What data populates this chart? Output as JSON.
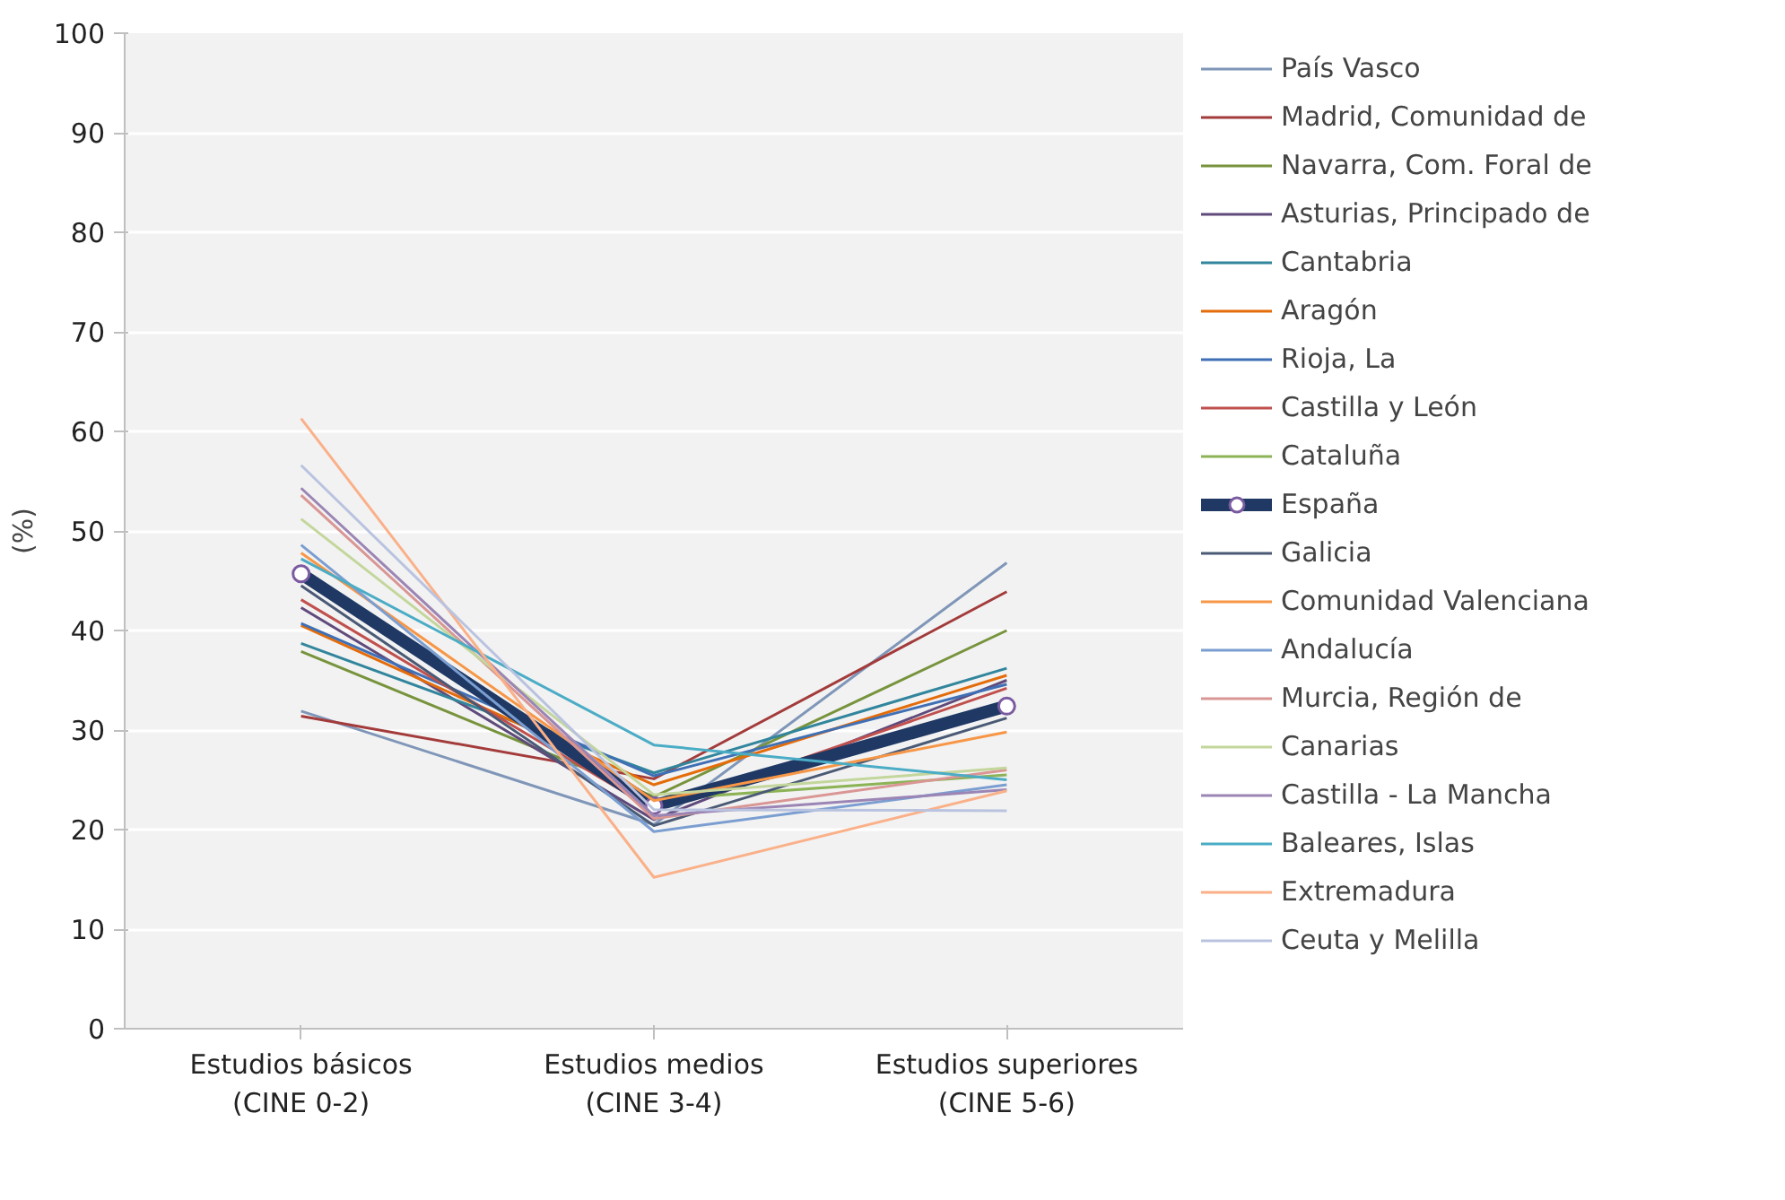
{
  "chart_data": {
    "type": "line",
    "ylabel": "(%)",
    "categories": [
      "Estudios básicos\n(CINE 0-2)",
      "Estudios medios\n(CINE 3-4)",
      "Estudios superiores\n(CINE 5-6)"
    ],
    "ylim": [
      0,
      100
    ],
    "yticks": [
      0,
      10,
      20,
      30,
      40,
      50,
      60,
      70,
      80,
      90,
      100
    ],
    "grid": "y",
    "legend": "right",
    "line_style": "solid",
    "series": [
      {
        "name": "País Vasco",
        "color": "#7f96b8",
        "values": [
          31.9,
          20.5,
          46.8
        ]
      },
      {
        "name": "Madrid, Comunidad de",
        "color": "#a33b3b",
        "values": [
          31.4,
          25.1,
          43.9
        ]
      },
      {
        "name": "Navarra, Com. Foral de",
        "color": "#77933c",
        "values": [
          37.9,
          23.3,
          40.0
        ]
      },
      {
        "name": "Asturias, Principado de",
        "color": "#604a7b",
        "values": [
          42.3,
          21.0,
          35.0
        ]
      },
      {
        "name": "Cantabria",
        "color": "#31859c",
        "values": [
          38.7,
          25.7,
          36.2
        ]
      },
      {
        "name": "Aragón",
        "color": "#e46c0a",
        "values": [
          40.5,
          24.5,
          35.5
        ]
      },
      {
        "name": "Rioja, La",
        "color": "#3f6fb5",
        "values": [
          40.7,
          25.4,
          34.6
        ]
      },
      {
        "name": "Castilla y León",
        "color": "#c0504d",
        "values": [
          43.1,
          22.0,
          34.2
        ]
      },
      {
        "name": "Cataluña",
        "color": "#8cb356",
        "values": [
          null,
          23.0,
          25.5
        ]
      },
      {
        "name": "España",
        "color": "#1f3864",
        "values": [
          45.7,
          22.4,
          32.4
        ],
        "marker": "circle"
      },
      {
        "name": "Galicia",
        "color": "#4a5a75",
        "values": [
          44.5,
          20.4,
          31.2
        ]
      },
      {
        "name": "Comunidad Valenciana",
        "color": "#f79646",
        "values": [
          47.8,
          22.9,
          29.8
        ]
      },
      {
        "name": "Andalucía",
        "color": "#7b9ed1",
        "values": [
          48.6,
          19.8,
          24.5
        ]
      },
      {
        "name": "Murcia, Región de",
        "color": "#d99694",
        "values": [
          53.6,
          21.1,
          26.0
        ]
      },
      {
        "name": "Canarias",
        "color": "#c3d69b",
        "values": [
          51.2,
          23.5,
          26.2
        ]
      },
      {
        "name": "Castilla - La Mancha",
        "color": "#9b85b5",
        "values": [
          54.3,
          21.4,
          24.0
        ]
      },
      {
        "name": "Baleares, Islas",
        "color": "#4bacc6",
        "values": [
          47.2,
          28.5,
          25.0
        ]
      },
      {
        "name": "Extremadura",
        "color": "#fab088",
        "values": [
          61.3,
          15.2,
          23.9
        ]
      },
      {
        "name": "Ceuta y Melilla",
        "color": "#b9c3e0",
        "values": [
          56.6,
          22.0,
          21.9
        ]
      }
    ]
  }
}
